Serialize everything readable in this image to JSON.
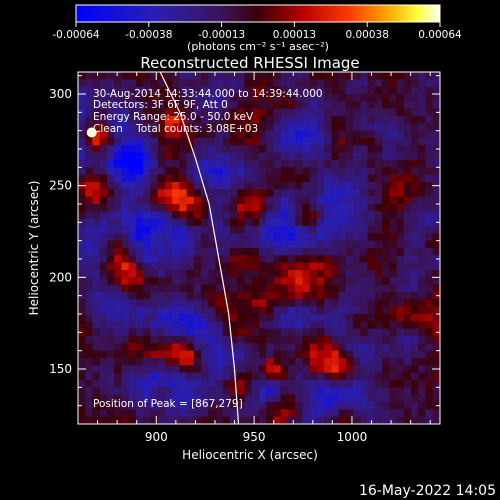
{
  "colorbar": {
    "ticks": [
      "-0.00064",
      "-0.00038",
      "-0.00013",
      "0.00013",
      "0.00038",
      "0.00064"
    ],
    "units_label": "(photons cm⁻² s⁻¹ asec⁻²)",
    "range": [
      -0.00064,
      0.00064
    ]
  },
  "title": "Reconstructed RHESSI Image",
  "annotations": {
    "time_range": "30-Aug-2014 14:33:44.000 to 14:39:44.000",
    "detectors": "Detectors: 3F 6F 9F, Att 0",
    "energy_range": "Energy Range: 25.0 - 50.0 keV",
    "method": "Clean    Total counts: 3.08E+03",
    "peak": "Position of Peak = [867,279]"
  },
  "footer_timestamp": "16-May-2022 14:05",
  "colors": {
    "background": "#000000",
    "text": "#ffffff",
    "limb_curve": "#ffffff"
  },
  "chart_data": {
    "type": "heatmap",
    "title": "Reconstructed RHESSI Image",
    "xlabel": "Heliocentric X (arcsec)",
    "ylabel": "Heliocentric Y (arcsec)",
    "xlim": [
      860,
      1045
    ],
    "ylim": [
      120,
      312
    ],
    "x_ticks": [
      900,
      950,
      1000
    ],
    "y_ticks": [
      150,
      200,
      250,
      300
    ],
    "x_tick_labels": [
      "900",
      "950",
      "1000"
    ],
    "y_tick_labels": [
      "150",
      "200",
      "250",
      "300"
    ],
    "colormap": "blue-purple-red-yellow-white",
    "peak_position": [
      867,
      279
    ],
    "limb_curve": [
      [
        902,
        312
      ],
      [
        912,
        290
      ],
      [
        920,
        265
      ],
      [
        927,
        240
      ],
      [
        932,
        210
      ],
      [
        937,
        180
      ],
      [
        940,
        150
      ],
      [
        942,
        120
      ]
    ],
    "grid_resolution": [
      50,
      48
    ]
  }
}
